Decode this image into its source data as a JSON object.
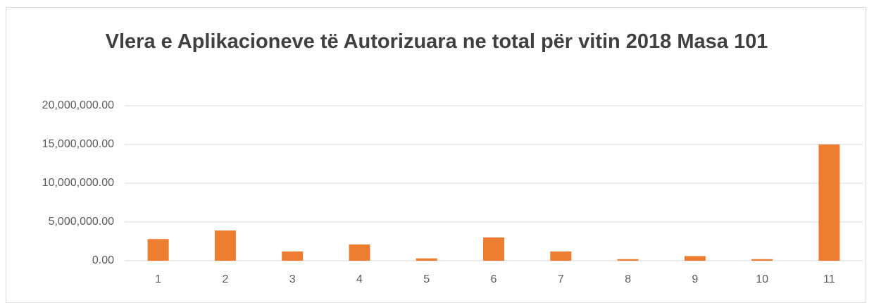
{
  "chart_data": {
    "type": "bar",
    "title": "Vlera e Aplikacioneve të Autorizuara ne total për vitin 2018 Masa 101",
    "categories": [
      "1",
      "2",
      "3",
      "4",
      "5",
      "6",
      "7",
      "8",
      "9",
      "10",
      "11"
    ],
    "values": [
      2800000,
      3900000,
      1200000,
      2100000,
      300000,
      3000000,
      1200000,
      200000,
      600000,
      200000,
      15000000
    ],
    "color": "#ed7d31",
    "ylim": [
      0,
      20000000
    ],
    "yticks": [
      {
        "value": 0,
        "label": "0.00"
      },
      {
        "value": 5000000,
        "label": "5,000,000.00"
      },
      {
        "value": 10000000,
        "label": "10,000,000.00"
      },
      {
        "value": 15000000,
        "label": "15,000,000.00"
      },
      {
        "value": 20000000,
        "label": "20,000,000.00"
      }
    ],
    "grid": true
  }
}
